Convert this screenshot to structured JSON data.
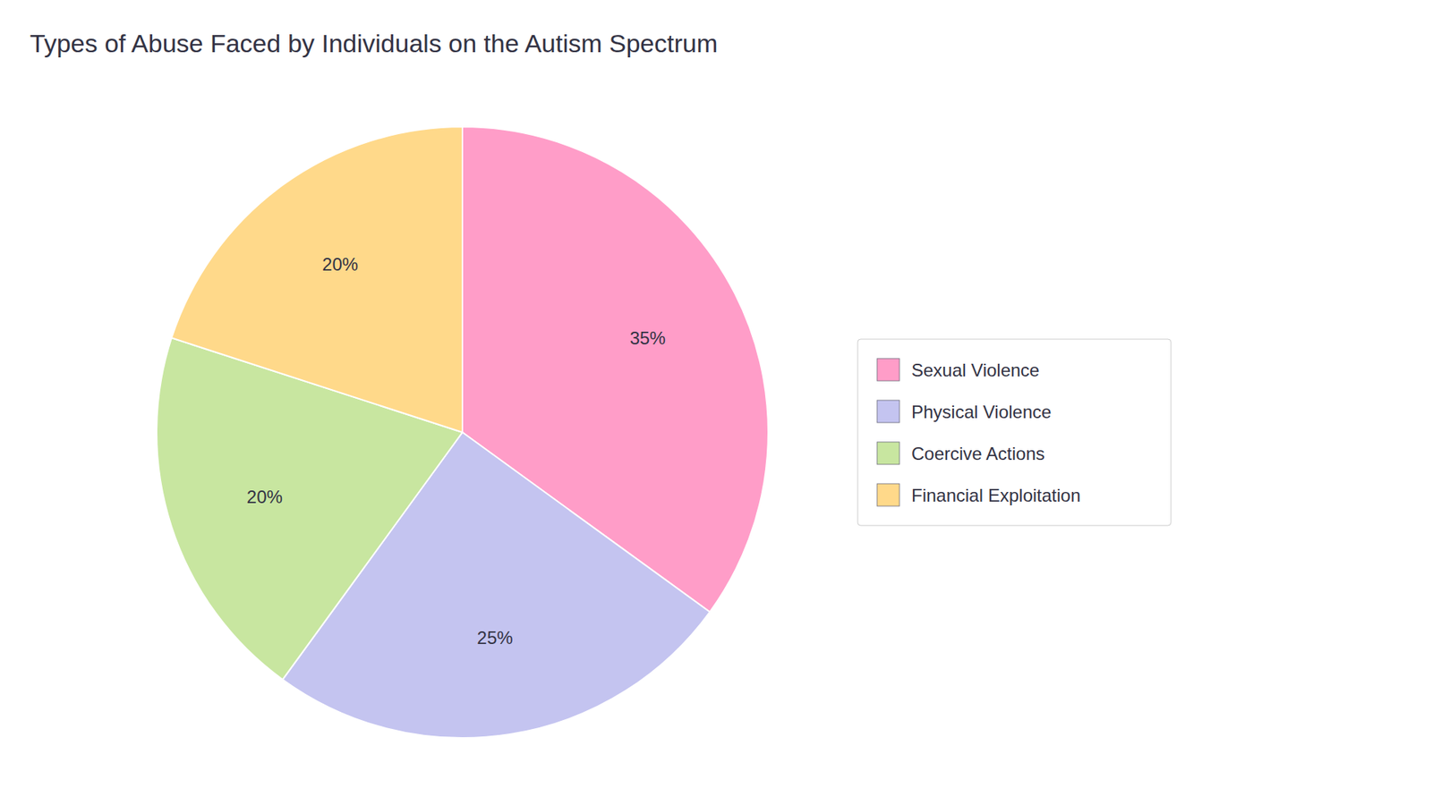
{
  "chart_data": {
    "type": "pie",
    "title": "Types of Abuse Faced by Individuals on the Autism Spectrum",
    "categories": [
      "Sexual Violence",
      "Physical Violence",
      "Coercive Actions",
      "Financial Exploitation"
    ],
    "values": [
      35,
      25,
      20,
      20
    ],
    "value_labels": [
      "35%",
      "25%",
      "20%",
      "20%"
    ],
    "colors": [
      "#FF9DC8",
      "#C4C4F0",
      "#C8E6A0",
      "#FFD98A"
    ],
    "data_labels": true,
    "legend": "right"
  }
}
